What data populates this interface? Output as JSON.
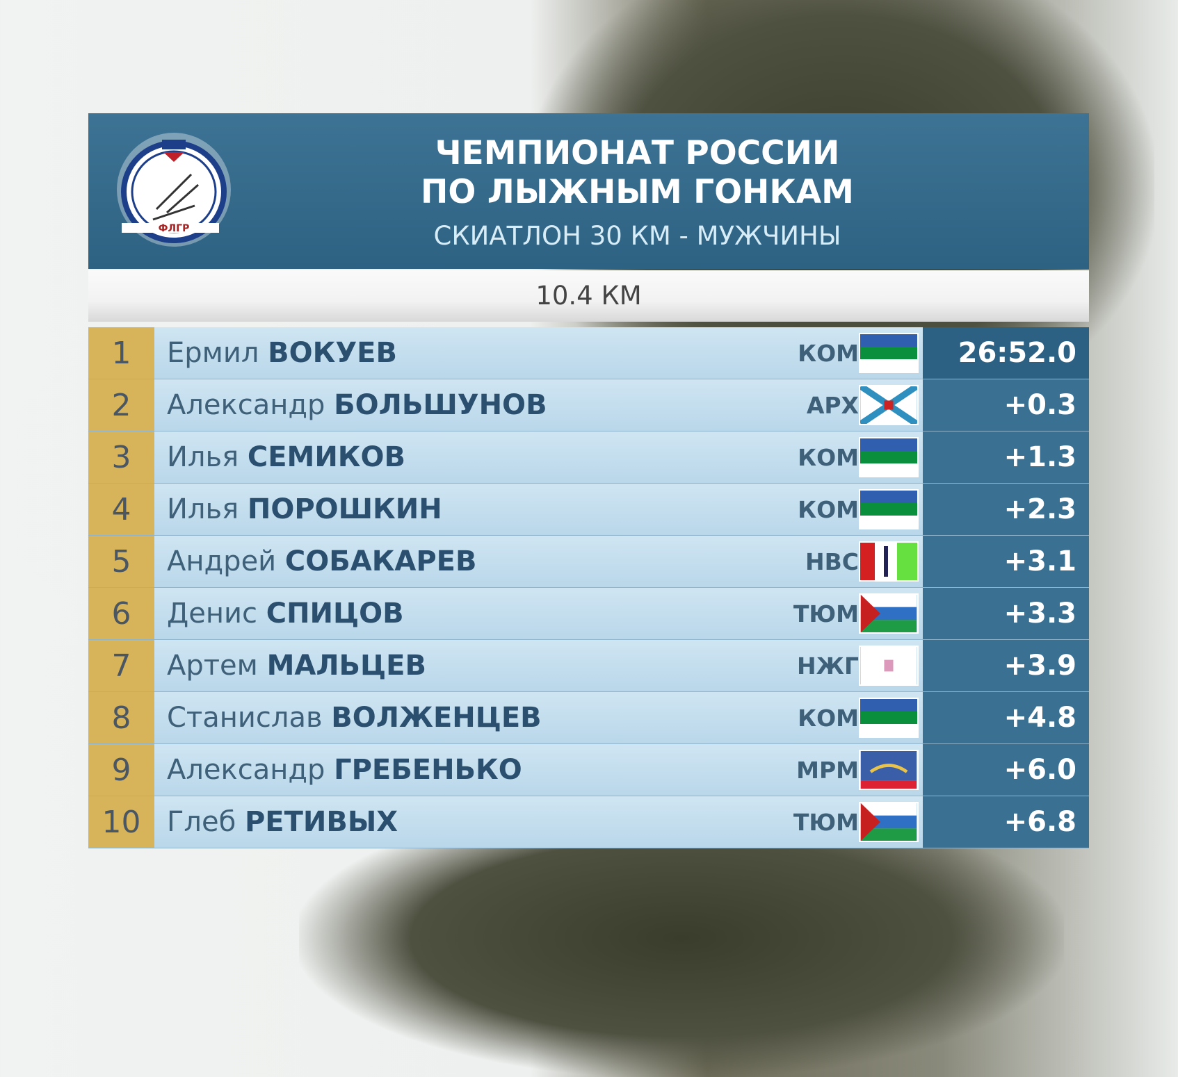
{
  "header": {
    "title_line1": "ЧЕМПИОНАТ РОССИИ",
    "title_line2": "ПО ЛЫЖНЫМ ГОНКАМ",
    "event": "СКИАТЛОН 30 КМ - МУЖЧИНЫ",
    "logo_text": "ФЛГР"
  },
  "checkpoint": "10.4 КМ",
  "results": [
    {
      "rank": "1",
      "first": "Ермил",
      "last": "ВОКУЕВ",
      "region": "КОМ",
      "flag": "komi",
      "time": "26:52.0"
    },
    {
      "rank": "2",
      "first": "Александр",
      "last": "БОЛЬШУНОВ",
      "region": "АРХ",
      "flag": "arkhangelsk",
      "time": "+0.3"
    },
    {
      "rank": "3",
      "first": "Илья",
      "last": "СЕМИКОВ",
      "region": "КОМ",
      "flag": "komi",
      "time": "+1.3"
    },
    {
      "rank": "4",
      "first": "Илья",
      "last": "ПОРОШКИН",
      "region": "КОМ",
      "flag": "komi",
      "time": "+2.3"
    },
    {
      "rank": "5",
      "first": "Андрей",
      "last": "СОБАКАРЕВ",
      "region": "НВС",
      "flag": "novosibirsk",
      "time": "+3.1"
    },
    {
      "rank": "6",
      "first": "Денис",
      "last": "СПИЦОВ",
      "region": "ТЮМ",
      "flag": "tyumen",
      "time": "+3.3"
    },
    {
      "rank": "7",
      "first": "Артем",
      "last": "МАЛЬЦЕВ",
      "region": "НЖГ",
      "flag": "nizhny",
      "time": "+3.9"
    },
    {
      "rank": "8",
      "first": "Станислав",
      "last": "ВОЛЖЕНЦЕВ",
      "region": "КОМ",
      "flag": "komi",
      "time": "+4.8"
    },
    {
      "rank": "9",
      "first": "Александр",
      "last": "ГРЕБЕНЬКО",
      "region": "МРМ",
      "flag": "murmansk",
      "time": "+6.0"
    },
    {
      "rank": "10",
      "first": "Глеб",
      "last": "РЕТИВЫХ",
      "region": "ТЮМ",
      "flag": "tyumen",
      "time": "+6.8"
    }
  ]
}
